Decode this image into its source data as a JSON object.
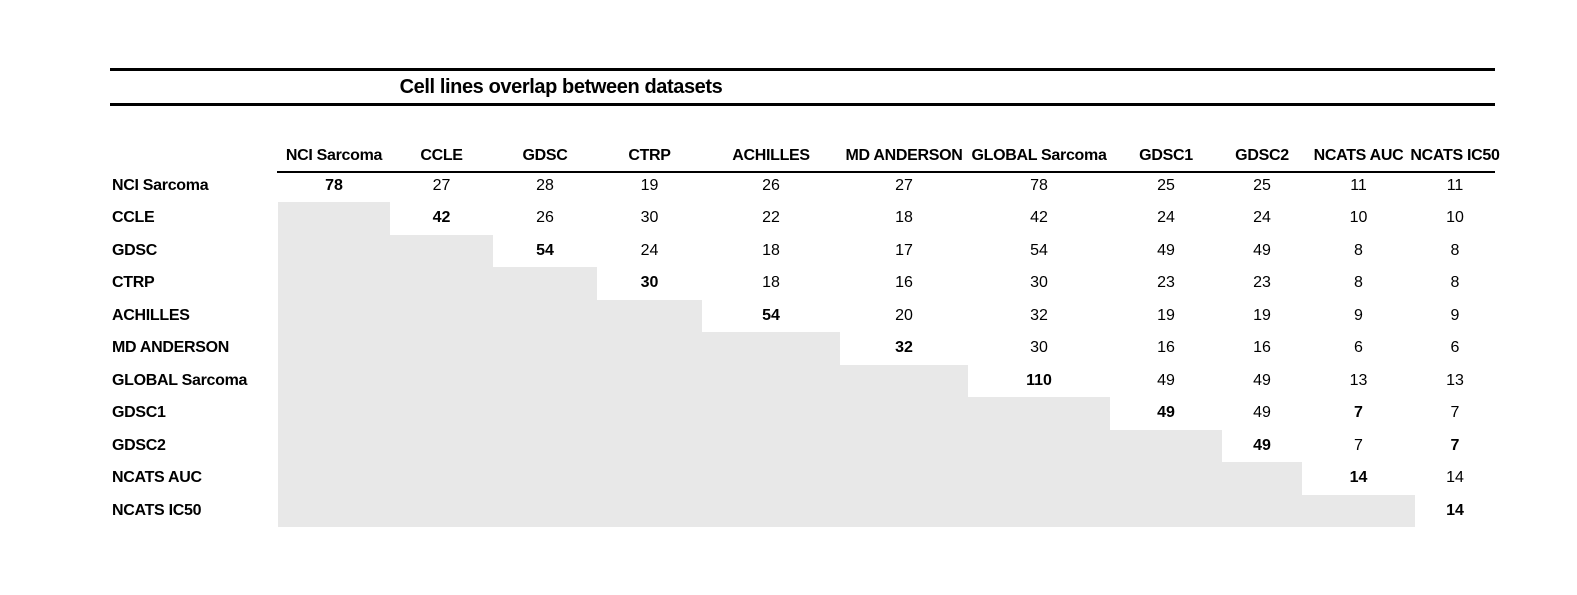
{
  "chart_data": {
    "type": "table",
    "title": "Cell lines overlap between datasets",
    "description": "Pairwise overlap counts of cell lines between datasets; upper triangle shown, diagonal in bold, lower triangle shaded gray",
    "columns": [
      "NCI Sarcoma",
      "CCLE",
      "GDSC",
      "CTRP",
      "ACHILLES",
      "MD ANDERSON",
      "GLOBAL Sarcoma",
      "GDSC1",
      "GDSC2",
      "NCATS AUC",
      "NCATS IC50"
    ],
    "row_labels": [
      "NCI Sarcoma",
      "CCLE",
      "GDSC",
      "CTRP",
      "ACHILLES",
      "MD ANDERSON",
      "GLOBAL Sarcoma",
      "GDSC1",
      "GDSC2",
      "NCATS AUC",
      "NCATS IC50"
    ],
    "matrix": [
      [
        78,
        27,
        28,
        19,
        26,
        27,
        78,
        25,
        25,
        11,
        11
      ],
      [
        null,
        42,
        26,
        30,
        22,
        18,
        42,
        24,
        24,
        10,
        10
      ],
      [
        null,
        null,
        54,
        24,
        18,
        17,
        54,
        49,
        49,
        8,
        8
      ],
      [
        null,
        null,
        null,
        30,
        18,
        16,
        30,
        23,
        23,
        8,
        8
      ],
      [
        null,
        null,
        null,
        null,
        54,
        20,
        32,
        19,
        19,
        9,
        9
      ],
      [
        null,
        null,
        null,
        null,
        null,
        32,
        30,
        16,
        16,
        6,
        6
      ],
      [
        null,
        null,
        null,
        null,
        null,
        null,
        110,
        49,
        49,
        13,
        13
      ],
      [
        null,
        null,
        null,
        null,
        null,
        null,
        null,
        49,
        49,
        7,
        7
      ],
      [
        null,
        null,
        null,
        null,
        null,
        null,
        null,
        null,
        49,
        7,
        7
      ],
      [
        null,
        null,
        null,
        null,
        null,
        null,
        null,
        null,
        null,
        14,
        14
      ],
      [
        null,
        null,
        null,
        null,
        null,
        null,
        null,
        null,
        null,
        null,
        14
      ]
    ],
    "bold_rule": "diagonal",
    "extra_bold_cells": [
      [
        7,
        9
      ],
      [
        8,
        10
      ]
    ],
    "shaded_region": "lower-triangle",
    "legend_position": "none",
    "grid": false,
    "colors": {
      "shade": "#e8e8e8",
      "text": "#000000",
      "rule": "#000000",
      "background": "#ffffff"
    }
  }
}
